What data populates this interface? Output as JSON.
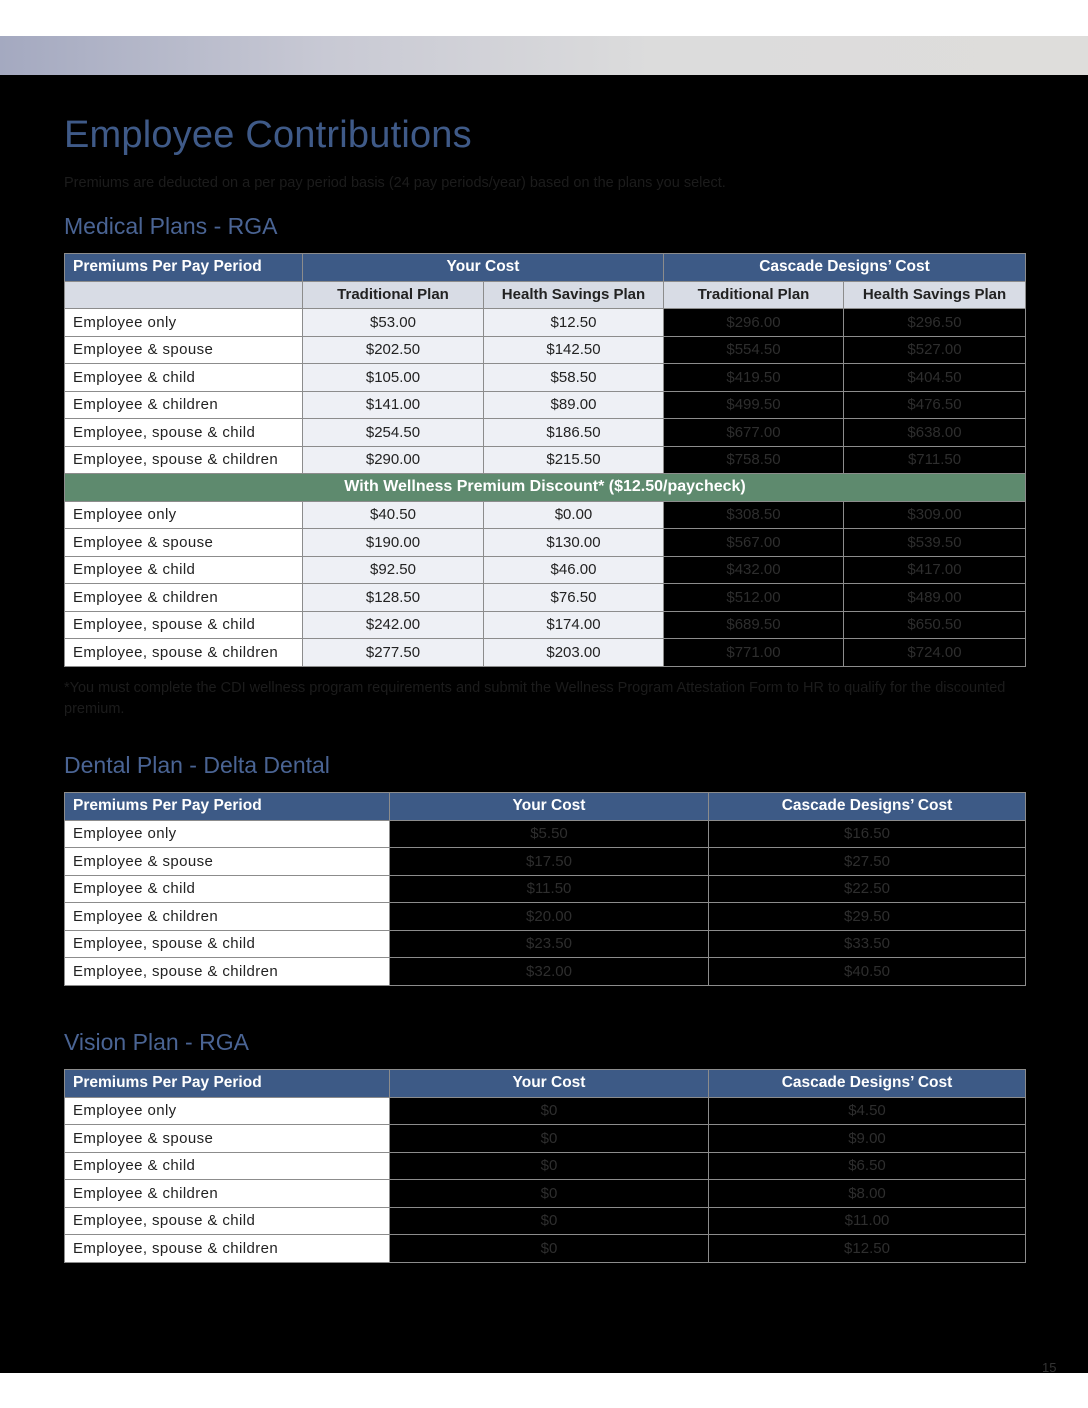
{
  "page": {
    "title": "Employee Contributions",
    "subtitle": "Premiums are deducted on a per pay period basis (24 pay periods/year) based on the plans you select.",
    "page_number": "15"
  },
  "medical": {
    "heading": "Medical Plans - RGA",
    "col_header": "Premiums Per Pay Period",
    "your_cost": "Your Cost",
    "company_cost": "Cascade Designs’ Cost",
    "sub_headers": [
      "Traditional Plan",
      "Health Savings Plan",
      "Traditional Plan",
      "Health Savings Plan"
    ],
    "rows": [
      [
        "Employee only",
        "$53.00",
        "$12.50",
        "$296.00",
        "$296.50"
      ],
      [
        "Employee & spouse",
        "$202.50",
        "$142.50",
        "$554.50",
        "$527.00"
      ],
      [
        "Employee & child",
        "$105.00",
        "$58.50",
        "$419.50",
        "$404.50"
      ],
      [
        "Employee & children",
        "$141.00",
        "$89.00",
        "$499.50",
        "$476.50"
      ],
      [
        "Employee, spouse & child",
        "$254.50",
        "$186.50",
        "$677.00",
        "$638.00"
      ],
      [
        "Employee, spouse & children",
        "$290.00",
        "$215.50",
        "$758.50",
        "$711.50"
      ]
    ],
    "wellness_label": "With Wellness Premium Discount* ($12.50/paycheck)",
    "wellness_rows": [
      [
        "Employee only",
        "$40.50",
        "$0.00",
        "$308.50",
        "$309.00"
      ],
      [
        "Employee & spouse",
        "$190.00",
        "$130.00",
        "$567.00",
        "$539.50"
      ],
      [
        "Employee & child",
        "$92.50",
        "$46.00",
        "$432.00",
        "$417.00"
      ],
      [
        "Employee & children",
        "$128.50",
        "$76.50",
        "$512.00",
        "$489.00"
      ],
      [
        "Employee, spouse & child",
        "$242.00",
        "$174.00",
        "$689.50",
        "$650.50"
      ],
      [
        "Employee, spouse & children",
        "$277.50",
        "$203.00",
        "$771.00",
        "$724.00"
      ]
    ],
    "footnote": "*You must complete the CDI wellness program requirements and submit the Wellness Program Attestation Form to HR to qualify for the discounted premium."
  },
  "dental": {
    "heading": "Dental Plan - Delta Dental",
    "col_header": "Premiums Per Pay Period",
    "your_cost": "Your Cost",
    "company_cost": "Cascade Designs’ Cost",
    "rows": [
      [
        "Employee only",
        "$5.50",
        "$16.50"
      ],
      [
        "Employee & spouse",
        "$17.50",
        "$27.50"
      ],
      [
        "Employee & child",
        "$11.50",
        "$22.50"
      ],
      [
        "Employee & children",
        "$20.00",
        "$29.50"
      ],
      [
        "Employee, spouse & child",
        "$23.50",
        "$33.50"
      ],
      [
        "Employee, spouse & children",
        "$32.00",
        "$40.50"
      ]
    ]
  },
  "vision": {
    "heading": "Vision Plan - RGA",
    "col_header": "Premiums Per Pay Period",
    "your_cost": "Your Cost",
    "company_cost": "Cascade Designs’ Cost",
    "rows": [
      [
        "Employee only",
        "$0",
        "$4.50"
      ],
      [
        "Employee & spouse",
        "$0",
        "$9.00"
      ],
      [
        "Employee & child",
        "$0",
        "$6.50"
      ],
      [
        "Employee & children",
        "$0",
        "$8.00"
      ],
      [
        "Employee, spouse & child",
        "$0",
        "$11.00"
      ],
      [
        "Employee, spouse & children",
        "$0",
        "$12.50"
      ]
    ]
  },
  "colors": {
    "header_blue": "#3d5a86",
    "title_blue": "#3f5a88",
    "wellness_green": "#5e8a6e"
  }
}
